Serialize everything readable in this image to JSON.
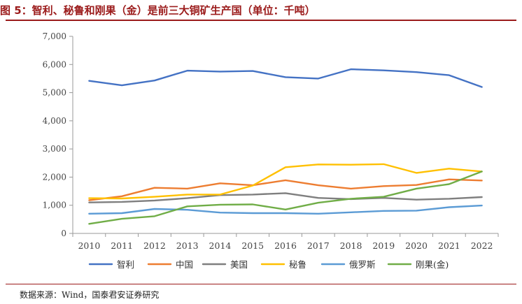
{
  "header": {
    "title": "图 5：智利、秘鲁和刚果（金）是前三大铜矿生产国（单位：千吨）"
  },
  "footer": {
    "source": "数据来源：Wind，国泰君安证券研究"
  },
  "chart_data": {
    "type": "line",
    "title": "图 5：智利、秘鲁和刚果（金）是前三大铜矿生产国（单位：千吨）",
    "xlabel": "",
    "ylabel": "",
    "ylim": [
      0,
      7000
    ],
    "yticks": [
      0,
      1000,
      2000,
      3000,
      4000,
      5000,
      6000,
      7000
    ],
    "ytick_labels": [
      "0",
      "1,000",
      "2,000",
      "3,000",
      "4,000",
      "5,000",
      "6,000",
      "7,000"
    ],
    "categories": [
      "2010",
      "2011",
      "2012",
      "2013",
      "2014",
      "2015",
      "2016",
      "2017",
      "2018",
      "2019",
      "2020",
      "2021",
      "2022"
    ],
    "legend_position": "bottom",
    "grid": false,
    "series": [
      {
        "name": "智利",
        "color": "#4472c4",
        "values": [
          5420,
          5260,
          5430,
          5780,
          5750,
          5770,
          5550,
          5500,
          5830,
          5790,
          5730,
          5620,
          5200
        ]
      },
      {
        "name": "中国",
        "color": "#ed7d31",
        "values": [
          1180,
          1320,
          1620,
          1590,
          1780,
          1710,
          1890,
          1710,
          1590,
          1680,
          1720,
          1920,
          1880
        ]
      },
      {
        "name": "美国",
        "color": "#7f7f7f",
        "values": [
          1100,
          1120,
          1170,
          1250,
          1360,
          1380,
          1430,
          1260,
          1220,
          1260,
          1200,
          1230,
          1290
        ]
      },
      {
        "name": "秘鲁",
        "color": "#ffc000",
        "values": [
          1250,
          1240,
          1300,
          1380,
          1380,
          1700,
          2350,
          2450,
          2440,
          2460,
          2150,
          2300,
          2200
        ]
      },
      {
        "name": "俄罗斯",
        "color": "#5b9bd5",
        "values": [
          700,
          720,
          870,
          840,
          740,
          720,
          720,
          700,
          750,
          800,
          810,
          930,
          990
        ]
      },
      {
        "name": "刚果(金)",
        "color": "#70ad47",
        "values": [
          340,
          520,
          610,
          960,
          1020,
          1030,
          850,
          1090,
          1230,
          1300,
          1590,
          1750,
          2200
        ]
      }
    ]
  }
}
